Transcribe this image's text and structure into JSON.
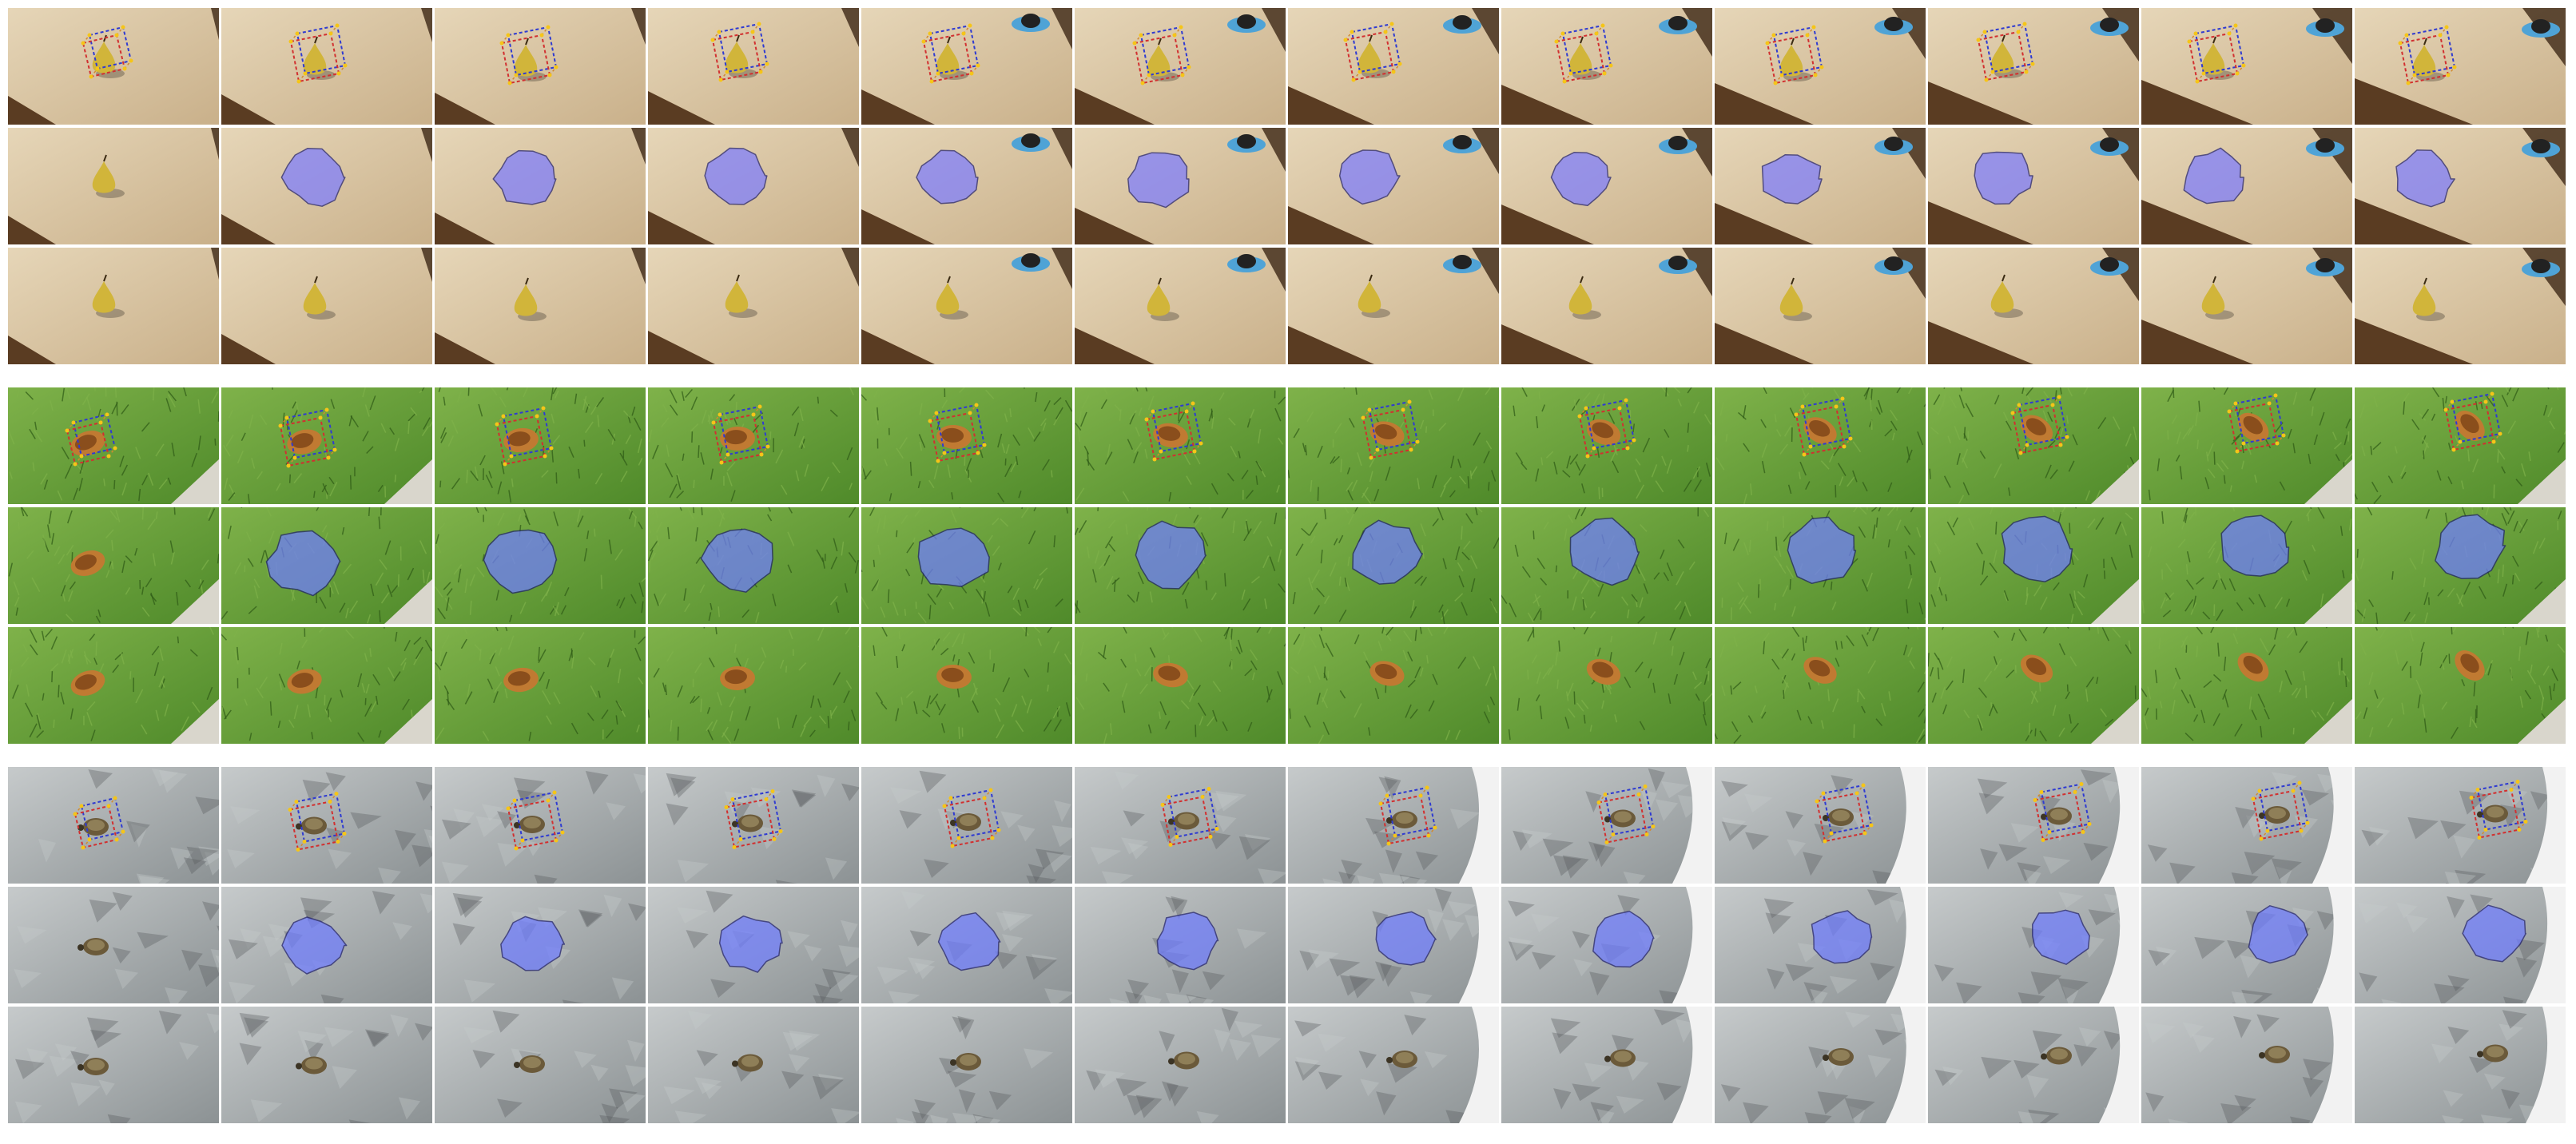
{
  "figure": {
    "columns": 12,
    "blocks": [
      {
        "scene": "pear-on-table",
        "object": "pear",
        "palette": {
          "base": "#c9b08a",
          "light": "#e6d6b8",
          "dark": "#5a3c22",
          "accent": "#3d2816"
        },
        "object_color": "#d1b53a",
        "mask_color": "#7d7dff",
        "rows": [
          "bbox-3d",
          "mask",
          "rgb"
        ]
      },
      {
        "scene": "glove-on-grass",
        "object": "baseball-glove",
        "palette": {
          "base": "#4f8a2a",
          "light": "#7fb24a",
          "dark": "#2e5a16",
          "accent": "#d9d6cc"
        },
        "object_color": "#c07a32",
        "mask_color": "#6f7dff",
        "rows": [
          "bbox-3d",
          "mask",
          "rgb"
        ]
      },
      {
        "scene": "turtle-on-stone",
        "object": "turtle",
        "palette": {
          "base": "#8c9294",
          "light": "#c6cacb",
          "dark": "#55595b",
          "accent": "#f2f2f2"
        },
        "object_color": "#6b5a3a",
        "mask_color": "#6f7dff",
        "rows": [
          "bbox-3d",
          "mask",
          "rgb"
        ]
      }
    ]
  }
}
